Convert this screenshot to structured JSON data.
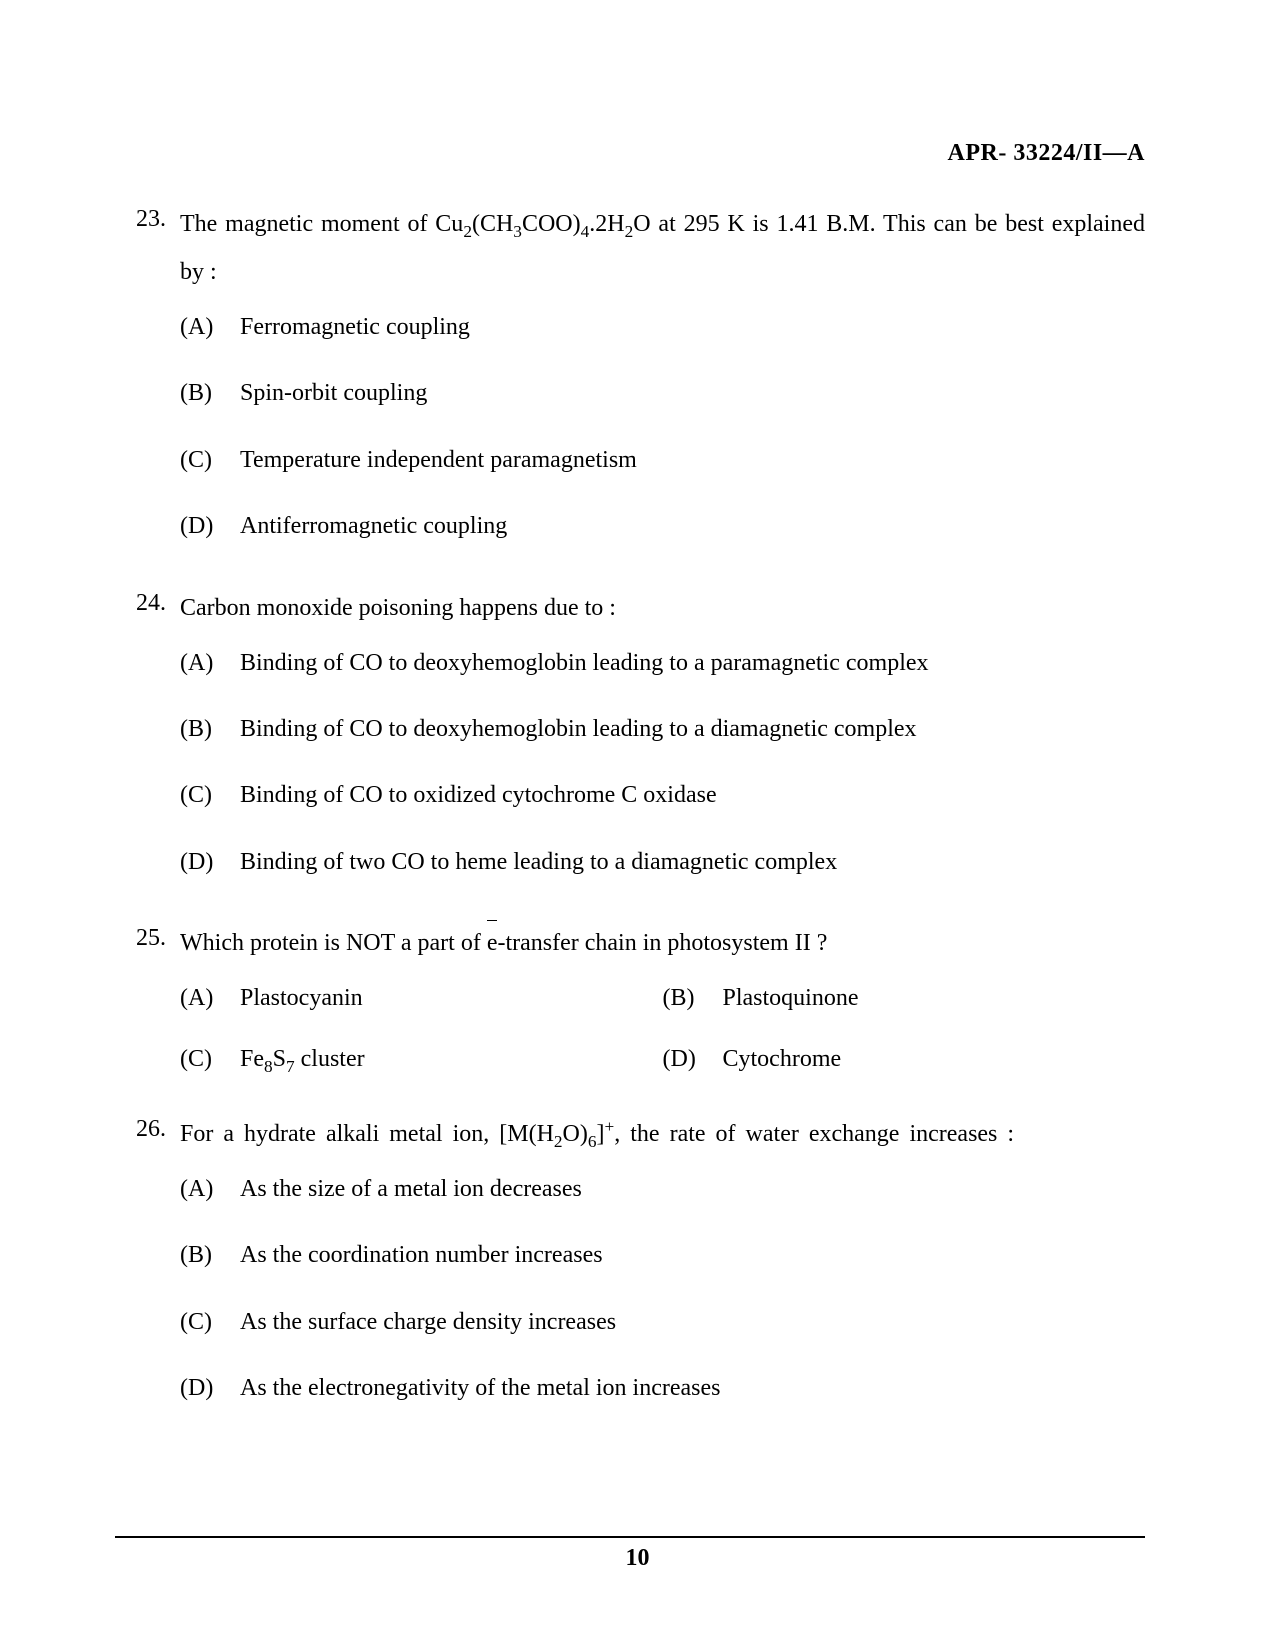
{
  "header": "APR- 33224/II—A",
  "page_number": "10",
  "questions": [
    {
      "number": "23.",
      "text_html": "The magnetic moment of Cu<sub>2</sub>(CH<sub>3</sub>COO)<sub>4</sub>.2H<sub>2</sub>O at 295 K is 1.41 B.M. This can be best explained by :",
      "layout": "1col",
      "options": [
        {
          "label": "(A)",
          "text_html": "Ferromagnetic coupling"
        },
        {
          "label": "(B)",
          "text_html": "Spin-orbit coupling"
        },
        {
          "label": "(C)",
          "text_html": "Temperature independent paramagnetism"
        },
        {
          "label": "(D)",
          "text_html": "Antiferromagnetic coupling"
        }
      ]
    },
    {
      "number": "24.",
      "text_html": "Carbon monoxide poisoning happens due to :",
      "layout": "1col",
      "options": [
        {
          "label": "(A)",
          "text_html": "Binding of CO to deoxyhemoglobin leading to a paramagnetic complex"
        },
        {
          "label": "(B)",
          "text_html": "Binding of CO to deoxyhemoglobin leading to a diamagnetic complex"
        },
        {
          "label": "(C)",
          "text_html": "Binding of CO to oxidized cytochrome C oxidase"
        },
        {
          "label": "(D)",
          "text_html": "Binding of two CO to heme leading to a diamagnetic complex"
        }
      ]
    },
    {
      "number": "25.",
      "text_html": "Which protein is NOT a part of <span class=\"ebar\">e</span>-transfer chain in photosystem II ?",
      "layout": "2col",
      "options": [
        {
          "label": "(A)",
          "text_html": "Plastocyanin"
        },
        {
          "label": "(B)",
          "text_html": "Plastoquinone"
        },
        {
          "label": "(C)",
          "text_html": "Fe<sub>8</sub>S<sub>7</sub> cluster"
        },
        {
          "label": "(D)",
          "text_html": "Cytochrome"
        }
      ]
    },
    {
      "number": "26.",
      "text_html": "For a hydrate alkali metal ion, [M(H<sub>2</sub>O)<sub>6</sub>]<sup>+</sup>, the rate of water exchange increases :",
      "layout": "1col",
      "options": [
        {
          "label": "(A)",
          "text_html": "As the size of a metal ion decreases"
        },
        {
          "label": "(B)",
          "text_html": "As the coordination number increases"
        },
        {
          "label": "(C)",
          "text_html": "As the surface charge density increases"
        },
        {
          "label": "(D)",
          "text_html": "As the electronegativity of the metal ion increases"
        }
      ]
    }
  ]
}
